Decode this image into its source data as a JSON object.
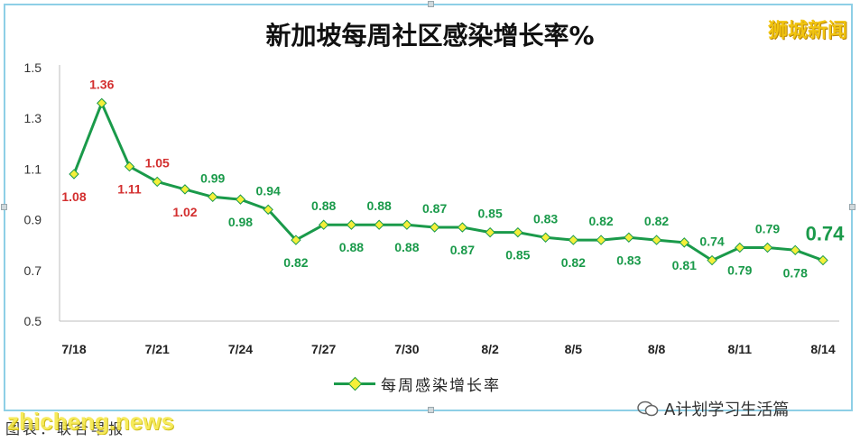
{
  "title": "新加坡每周社区感染增长率%",
  "brand": "狮城新闻",
  "legend_label": "每周感染增长率",
  "wechat_label": "A计划学习生活篇",
  "source_label": "图表：联合早报",
  "watermark": "zhicheng.news",
  "colors": {
    "line": "#1a9a4a",
    "marker": "#f5ef3a",
    "label_above": "#d32f2f",
    "label_normal": "#1a9a4a"
  },
  "chart_data": {
    "type": "line",
    "title": "新加坡每周社区感染增长率%",
    "x": [
      "7/18",
      "7/19",
      "7/20",
      "7/21",
      "7/22",
      "7/23",
      "7/24",
      "7/25",
      "7/26",
      "7/27",
      "7/28",
      "7/29",
      "7/30",
      "7/31",
      "8/1",
      "8/2",
      "8/3",
      "8/4",
      "8/5",
      "8/6",
      "8/7",
      "8/8",
      "8/9",
      "8/10",
      "8/11",
      "8/12",
      "8/13",
      "8/14"
    ],
    "x_tick_labels": [
      "7/18",
      "7/21",
      "7/24",
      "7/27",
      "7/30",
      "8/2",
      "8/5",
      "8/8",
      "8/11",
      "8/14"
    ],
    "series": [
      {
        "name": "每周感染增长率",
        "values": [
          1.08,
          1.36,
          1.11,
          1.05,
          1.02,
          0.99,
          0.98,
          0.94,
          0.82,
          0.88,
          0.88,
          0.88,
          0.88,
          0.87,
          0.87,
          0.85,
          0.85,
          0.83,
          0.82,
          0.82,
          0.83,
          0.82,
          0.81,
          0.74,
          0.79,
          0.79,
          0.78,
          0.74
        ]
      }
    ],
    "data_labels": [
      "1.08",
      "1.36",
      "1.11",
      "1.05",
      "1.02",
      "0.99",
      "0.98",
      "0.94",
      "0.82",
      "0.88",
      "0.88",
      "0.88",
      "0.88",
      "0.87",
      "0.87",
      "0.85",
      "0.85",
      "0.83",
      "0.82",
      "0.82",
      "0.83",
      "0.82",
      "0.81",
      "0.74",
      "0.79",
      "0.79",
      "0.78",
      "0.74"
    ],
    "y_ticks": [
      "0.5",
      "0.7",
      "0.9",
      "1.1",
      "1.3",
      "1.5"
    ],
    "ylim": [
      0.5,
      1.5
    ],
    "grid": false,
    "legend_position": "bottom"
  }
}
